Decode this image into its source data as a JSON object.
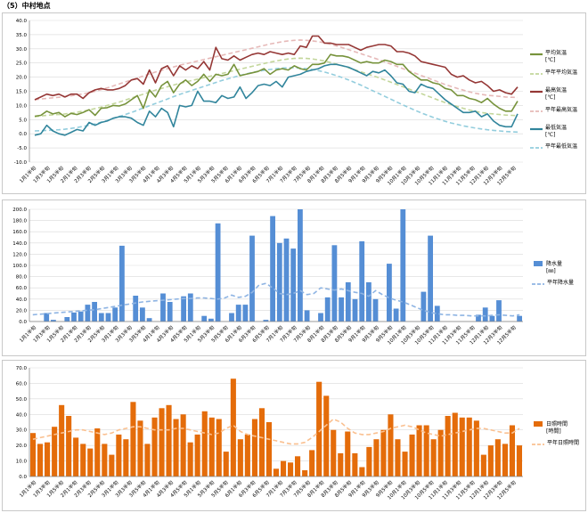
{
  "page": {
    "title": "（5）中村地点"
  },
  "x_labels": [
    "1月1半旬",
    "1月3半旬",
    "1月5半旬",
    "2月1半旬",
    "2月3半旬",
    "2月5半旬",
    "3月1半旬",
    "3月3半旬",
    "3月5半旬",
    "4月1半旬",
    "4月3半旬",
    "4月5半旬",
    "5月1半旬",
    "5月3半旬",
    "5月5半旬",
    "6月1半旬",
    "6月3半旬",
    "6月5半旬",
    "7月1半旬",
    "7月3半旬",
    "7月5半旬",
    "8月1半旬",
    "8月3半旬",
    "8月5半旬",
    "9月1半旬",
    "9月3半旬",
    "9月5半旬",
    "10月1半旬",
    "10月3半旬",
    "10月5半旬",
    "11月1半旬",
    "11月3半旬",
    "11月5半旬",
    "12月1半旬",
    "12月3半旬",
    "12月5半旬"
  ],
  "colors": {
    "mean": "#77933C",
    "mean_normal": "#C3D69B",
    "max": "#953735",
    "max_normal": "#E6B9B8",
    "min": "#31859C",
    "min_normal": "#93CDDD",
    "precip": "#558ED5",
    "precip_normal": "#8EB4E3",
    "sun": "#E46C0A",
    "sun_normal": "#FAC090",
    "grid": "#d9d9d9",
    "axis": "#808080"
  },
  "chart_data": [
    {
      "type": "line",
      "ylim": [
        -10,
        40
      ],
      "yticks": [
        "-10.0",
        "-5.0",
        "0.0",
        "5.0",
        "10.0",
        "15.0",
        "20.0",
        "25.0",
        "30.0",
        "35.0",
        "40.0"
      ],
      "legend": {
        "mean": "平均気温",
        "unit1": "[℃]",
        "mean_normal": "平年平均気温",
        "max": "最高気温",
        "unit2": "[℃]",
        "max_normal": "平年最高気温",
        "min": "最低気温",
        "unit3": "[℃]",
        "min_normal": "平年最低気温"
      },
      "series": [
        {
          "name": "平均気温",
          "values": [
            6.2,
            6.5,
            8.0,
            7.0,
            7.5,
            6.0,
            7.2,
            6.8,
            7.5,
            8.5,
            6.5,
            9.0,
            9.2,
            10.0,
            9.8,
            10.5,
            12.0,
            13.5,
            9.0,
            15.5,
            13.0,
            17.0,
            18.5,
            14.5,
            17.5,
            19.0,
            17.0,
            18.5,
            21.0,
            18.5,
            21.0,
            20.5,
            21.0,
            24.5,
            20.5,
            21.0,
            21.5,
            22.0,
            23.0,
            21.0,
            22.5,
            23.0,
            22.5,
            24.0,
            23.0,
            22.5,
            24.5,
            24.5,
            25.0,
            28.0,
            27.5,
            27.5,
            27.0,
            26.0,
            25.0,
            25.5,
            25.0,
            25.0,
            26.0,
            25.5,
            24.5,
            24.5,
            22.0,
            20.5,
            19.0,
            19.0,
            18.0,
            17.5,
            16.0,
            15.5,
            13.5,
            13.5,
            12.5,
            12.0,
            11.0,
            12.5,
            10.5,
            9.0,
            8.0,
            8.0,
            11.5
          ]
        },
        {
          "name": "平年平均気温",
          "values": [
            6.0,
            6.3,
            6.5,
            6.7,
            6.8,
            7.0,
            7.3,
            7.6,
            8.0,
            8.4,
            8.9,
            9.4,
            10.0,
            10.6,
            11.2,
            11.9,
            12.6,
            13.3,
            14.0,
            14.7,
            15.4,
            16.0,
            16.6,
            17.2,
            17.8,
            18.3,
            18.8,
            19.3,
            19.8,
            20.3,
            20.8,
            21.3,
            21.8,
            22.3,
            22.8,
            23.3,
            23.8,
            24.3,
            24.8,
            25.3,
            25.7,
            26.1,
            26.4,
            26.6,
            26.7,
            26.6,
            26.4,
            26.1,
            25.7,
            25.2,
            24.6,
            24.0,
            23.3,
            22.6,
            21.9,
            21.2,
            20.5,
            19.8,
            19.0,
            18.2,
            17.4,
            16.6,
            15.8,
            15.0,
            14.2,
            13.4,
            12.6,
            11.8,
            11.0,
            10.3,
            9.6,
            9.0,
            8.4,
            7.9,
            7.5,
            7.2,
            7.0,
            6.8,
            6.6,
            6.5,
            6.4
          ]
        },
        {
          "name": "最高気温",
          "values": [
            12.0,
            13.0,
            14.0,
            13.5,
            14.0,
            13.0,
            14.0,
            14.0,
            12.5,
            14.5,
            15.5,
            16.0,
            15.5,
            15.5,
            16.0,
            17.0,
            19.0,
            19.5,
            17.5,
            22.5,
            18.0,
            23.0,
            24.0,
            20.5,
            24.0,
            22.5,
            24.0,
            23.0,
            25.5,
            22.5,
            30.5,
            26.5,
            26.0,
            27.5,
            26.0,
            27.0,
            28.0,
            28.5,
            28.0,
            29.0,
            28.5,
            28.0,
            28.5,
            28.0,
            31.0,
            30.5,
            34.5,
            34.5,
            32.0,
            32.0,
            31.5,
            31.5,
            31.5,
            30.5,
            29.5,
            30.5,
            31.0,
            31.5,
            31.5,
            31.0,
            29.0,
            29.0,
            28.5,
            27.5,
            25.5,
            25.0,
            24.5,
            24.0,
            23.5,
            21.0,
            20.0,
            20.5,
            19.0,
            18.0,
            18.5,
            17.0,
            15.0,
            15.5,
            14.5,
            14.0,
            16.5
          ]
        },
        {
          "name": "平年最高気温",
          "values": [
            12.0,
            12.3,
            12.5,
            12.7,
            12.9,
            13.1,
            13.4,
            13.7,
            14.1,
            14.5,
            15.0,
            15.6,
            16.2,
            16.9,
            17.6,
            18.3,
            19.0,
            19.7,
            20.4,
            21.1,
            21.8,
            22.4,
            23.0,
            23.6,
            24.2,
            24.7,
            25.2,
            25.7,
            26.2,
            26.7,
            27.2,
            27.7,
            28.2,
            28.7,
            29.2,
            29.7,
            30.2,
            30.7,
            31.2,
            31.7,
            32.1,
            32.5,
            32.8,
            33.0,
            33.1,
            33.0,
            32.8,
            32.5,
            32.1,
            31.6,
            31.0,
            30.4,
            29.7,
            29.0,
            28.3,
            27.6,
            26.9,
            26.2,
            25.4,
            24.6,
            23.8,
            23.0,
            22.2,
            21.4,
            20.6,
            19.8,
            19.0,
            18.2,
            17.4,
            16.7,
            16.0,
            15.4,
            14.8,
            14.3,
            13.9,
            13.6,
            13.4,
            13.2,
            13.0,
            12.9,
            12.8
          ]
        },
        {
          "name": "最低気温",
          "values": [
            -0.5,
            0.0,
            3.0,
            1.0,
            0.0,
            -0.5,
            0.5,
            1.5,
            1.0,
            4.0,
            3.0,
            4.0,
            4.5,
            5.5,
            6.0,
            6.0,
            5.5,
            4.0,
            3.0,
            8.0,
            6.0,
            9.0,
            7.5,
            2.5,
            10.0,
            9.5,
            10.0,
            15.0,
            11.5,
            11.5,
            11.0,
            13.5,
            12.5,
            13.0,
            16.5,
            12.5,
            14.5,
            17.0,
            17.5,
            17.0,
            18.5,
            16.5,
            20.0,
            20.5,
            21.0,
            22.0,
            22.5,
            23.0,
            24.0,
            24.5,
            24.5,
            24.0,
            23.5,
            22.5,
            21.5,
            20.5,
            22.0,
            21.5,
            22.5,
            20.5,
            18.0,
            17.5,
            15.0,
            14.5,
            17.5,
            16.5,
            16.0,
            14.0,
            12.0,
            10.5,
            9.0,
            7.5,
            7.5,
            8.0,
            6.0,
            7.0,
            4.5,
            3.0,
            2.5,
            2.5,
            7.0
          ]
        },
        {
          "name": "平年最低気温",
          "values": [
            1.0,
            1.1,
            1.2,
            1.3,
            1.4,
            1.6,
            1.9,
            2.2,
            2.6,
            3.0,
            3.5,
            4.1,
            4.7,
            5.4,
            6.1,
            6.8,
            7.5,
            8.3,
            9.1,
            9.9,
            10.7,
            11.5,
            12.3,
            13.1,
            13.9,
            14.6,
            15.3,
            16.0,
            16.7,
            17.4,
            18.1,
            18.8,
            19.4,
            20.0,
            20.6,
            21.1,
            21.6,
            22.0,
            22.4,
            22.7,
            23.0,
            23.2,
            23.3,
            23.3,
            23.2,
            23.0,
            22.7,
            22.3,
            21.8,
            21.2,
            20.5,
            19.8,
            19.0,
            18.1,
            17.2,
            16.2,
            15.2,
            14.2,
            13.2,
            12.2,
            11.2,
            10.2,
            9.2,
            8.3,
            7.4,
            6.6,
            5.8,
            5.1,
            4.4,
            3.8,
            3.3,
            2.8,
            2.4,
            2.0,
            1.7,
            1.4,
            1.2,
            1.0,
            0.8,
            0.7,
            0.6
          ]
        }
      ]
    },
    {
      "type": "bar",
      "ylim": [
        0,
        200
      ],
      "yticks": [
        "0.0",
        "20.0",
        "40.0",
        "60.0",
        "80.0",
        "100.0",
        "120.0",
        "140.0",
        "160.0",
        "180.0",
        "200.0"
      ],
      "legend": {
        "bar": "降水量",
        "unit": "[㎜]",
        "line": "平年降水量"
      },
      "series": [
        {
          "name": "降水量",
          "values": [
            0,
            0,
            15,
            3,
            0,
            8,
            16,
            18,
            30,
            35,
            15,
            15,
            25,
            135,
            0,
            46,
            25,
            6,
            0,
            50,
            35,
            0,
            45,
            50,
            0,
            10,
            5,
            175,
            0,
            15,
            30,
            30,
            153,
            0,
            3,
            188,
            140,
            148,
            130,
            200,
            20,
            0,
            15,
            43,
            136,
            43,
            70,
            40,
            143,
            70,
            40,
            0,
            103,
            23,
            200,
            0,
            0,
            53,
            153,
            28,
            0,
            0,
            0,
            0,
            0,
            12,
            25,
            10,
            38,
            0,
            0,
            10
          ]
        },
        {
          "name": "平年降水量",
          "values": [
            12,
            13,
            14,
            15,
            16,
            17,
            18,
            19,
            20,
            21,
            23,
            25,
            27,
            29,
            31,
            33,
            35,
            36,
            37,
            38,
            39,
            40,
            41,
            41,
            42,
            42,
            41,
            40,
            42,
            47,
            43,
            45,
            52,
            65,
            68,
            60,
            50,
            48,
            50,
            55,
            48,
            50,
            60,
            58,
            56,
            58,
            55,
            52,
            50,
            45,
            55,
            48,
            42,
            38,
            35,
            30,
            25,
            20,
            16,
            14,
            12,
            12,
            11,
            11,
            10,
            10,
            10,
            11,
            12,
            11,
            10,
            12
          ]
        }
      ]
    },
    {
      "type": "bar",
      "ylim": [
        0,
        70
      ],
      "yticks": [
        "0.0",
        "10.0",
        "20.0",
        "30.0",
        "40.0",
        "50.0",
        "60.0",
        "70.0"
      ],
      "legend": {
        "bar": "日照時間",
        "unit": "[時間]",
        "line": "平年日照時間"
      },
      "series": [
        {
          "name": "日照時間",
          "values": [
            28,
            21,
            22,
            32,
            46,
            39,
            25,
            21,
            18,
            31,
            21,
            14,
            27,
            24,
            48,
            36,
            21,
            38,
            44,
            46,
            37,
            40,
            22,
            27,
            42,
            38,
            37,
            16,
            63,
            24,
            27,
            37,
            44,
            35,
            5,
            10,
            9,
            13,
            4,
            17,
            61,
            52,
            30,
            15,
            29,
            15,
            6,
            19,
            24,
            30,
            40,
            24,
            16,
            27,
            33,
            33,
            24,
            30,
            39,
            41,
            38,
            38,
            36,
            14,
            20,
            24,
            21,
            33,
            20
          ]
        },
        {
          "name": "平年日照時間",
          "values": [
            24,
            25,
            26,
            27,
            28,
            29,
            30,
            30,
            29,
            28,
            27,
            28,
            30,
            31,
            32,
            32,
            31,
            30,
            30,
            30,
            31,
            31,
            30,
            29,
            28,
            27,
            28,
            31,
            33,
            29,
            27,
            26,
            25,
            24,
            23,
            22,
            21,
            21,
            22,
            25,
            29,
            33,
            37,
            35,
            31,
            28,
            27,
            27,
            28,
            29,
            31,
            32,
            33,
            32,
            30,
            28,
            27,
            26,
            27,
            28,
            29,
            30,
            31,
            31,
            30,
            29,
            28,
            28,
            31
          ]
        }
      ]
    }
  ]
}
